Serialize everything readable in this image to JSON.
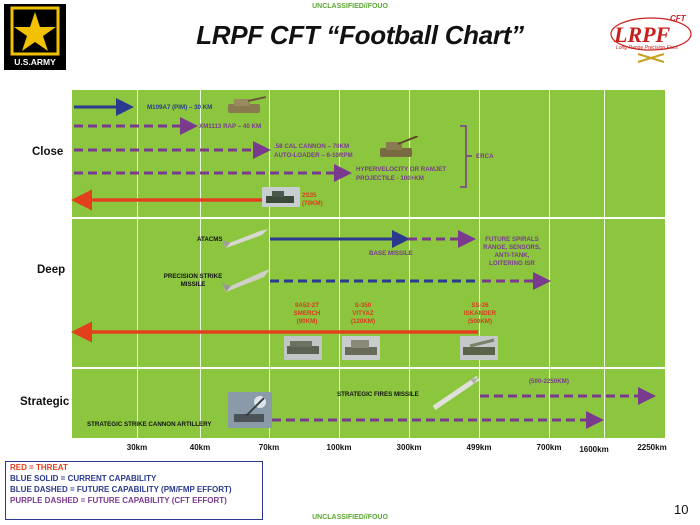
{
  "header": {
    "classification_top": "UNCLASSIFIED//FOUO",
    "title": "LRPF CFT “Football Chart”",
    "army_logo_text": "U.S.ARMY",
    "lrpf_logo_text": "LRPF",
    "lrpf_logo_cft": "CFT",
    "lrpf_logo_sub": "Long Range Precision Fires"
  },
  "rows": {
    "close": "Close",
    "deep": "Deep",
    "strategic": "Strategic"
  },
  "ticks": [
    "30km",
    "40km",
    "70km",
    "100km",
    "300km",
    "499km",
    "700km",
    "1600km",
    "2250km"
  ],
  "close": {
    "m109_label": "M109A7 (PIM) – 30 KM",
    "xm1113_label": "XM1113 RAP – 40 KM",
    "cannon_label_1": ".58 CAL CANNON – 70KM",
    "cannon_label_2": "AUTO-LOADER – 6-10RPM",
    "hyper_label_1": "HYPERVELOCITY OR RAMJET",
    "hyper_label_2": "PROJECTILE - 100+KM",
    "erca_label": "ERCA",
    "threat_label_1": "2S35",
    "threat_label_2": "(70KM)"
  },
  "deep": {
    "atacms_label": "ATACMS",
    "base_missile_label": "BASE MISSILE",
    "future_spirals_1": "FUTURE SPIRALS",
    "future_spirals_2": "RANGE, SENSORS,",
    "future_spirals_3": "ANTI-TANK,",
    "future_spirals_4": "LOITERING ISR",
    "psm_label_1": "PRECISION STRIKE",
    "psm_label_2": "MISSILE",
    "threat_a_1": "9A52-2T",
    "threat_a_2": "SMERCH",
    "threat_a_3": "(90KM)",
    "threat_b_1": "S-350",
    "threat_b_2": "VITYAZ",
    "threat_b_3": "(120KM)",
    "threat_c_1": "SS-26",
    "threat_c_2": "ISKANDER",
    "threat_c_3": "(500KM)"
  },
  "strategic": {
    "range_label": "(500-2250KM)",
    "sfm_label": "STRATEGIC FIRES MISSILE",
    "sscsa_label": "STRATEGIC STRIKE CANNON ARTILLERY"
  },
  "legend": {
    "red": "RED = THREAT",
    "blue_solid": "BLUE SOLID = CURRENT CAPABILITY",
    "blue_dashed": "BLUE DASHED = FUTURE CAPABILITY (PM/FMP EFFORT)",
    "purple_dashed": "PURPLE DASHED = FUTURE CAPABILITY (CFT EFFORT)"
  },
  "footer": {
    "classification_bottom": "UNCLASSIFIED//FOUO",
    "page_number": "10"
  },
  "colors": {
    "threat_red": "#e2401c",
    "current_blue": "#2b3a8f",
    "future_purple": "#7a3a8e",
    "background_green": "#8cc63f"
  }
}
